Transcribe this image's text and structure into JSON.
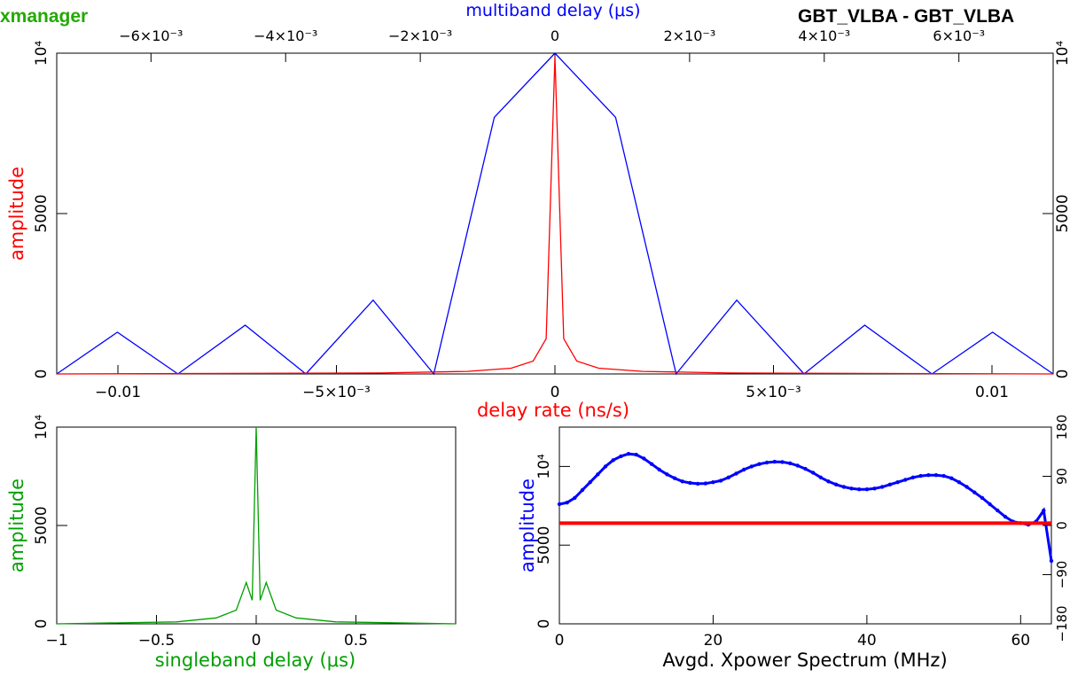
{
  "app_label": "xmanager",
  "baseline_label": "GBT_VLBA - GBT_VLBA",
  "colors": {
    "red": "#ff0000",
    "blue": "#0000ff",
    "green": "#00a000",
    "pale_green": "#20b020",
    "cyan": "#00c0c0",
    "app_green": "#22aa00"
  },
  "chart_data": [
    {
      "id": "main",
      "type": "line",
      "top_xlabel": "multiband delay (μs)",
      "xlabel": "delay rate (ns/s)",
      "ylabel": "amplitude",
      "ylim": [
        0,
        10000
      ],
      "y_ticks_left": [
        "0",
        "5000",
        "10⁴"
      ],
      "y_ticks_right": [
        "0",
        "5000",
        "10⁴"
      ],
      "top_axis": {
        "range": [
          -0.0074,
          0.0074
        ],
        "ticks": [
          {
            "v": -0.006,
            "label": "−6×10⁻³"
          },
          {
            "v": -0.004,
            "label": "−4×10⁻³"
          },
          {
            "v": -0.002,
            "label": "−2×10⁻³"
          },
          {
            "v": 0,
            "label": "0"
          },
          {
            "v": 0.002,
            "label": "2×10⁻³"
          },
          {
            "v": 0.004,
            "label": "4×10⁻³"
          },
          {
            "v": 0.006,
            "label": "6×10⁻³"
          }
        ]
      },
      "bottom_axis": {
        "range": [
          -0.0114,
          0.0114
        ],
        "ticks": [
          {
            "v": -0.01,
            "label": "−0.01"
          },
          {
            "v": -0.005,
            "label": "−5×10⁻³"
          },
          {
            "v": 0,
            "label": "0"
          },
          {
            "v": 0.005,
            "label": "5×10⁻³"
          },
          {
            "v": 0.01,
            "label": "0.01"
          }
        ]
      },
      "series": [
        {
          "color": "blue",
          "axis": "top",
          "x": [
            -0.0074,
            -0.0065,
            -0.0056,
            -0.0046,
            -0.0037,
            -0.0027,
            -0.0018,
            -0.0009,
            0,
            0.0009,
            0.0018,
            0.0027,
            0.0037,
            0.0046,
            0.0056,
            0.0065,
            0.0074
          ],
          "y": [
            0,
            1300,
            0,
            1520,
            0,
            2300,
            0,
            8000,
            10000,
            8000,
            0,
            2300,
            0,
            1520,
            0,
            1300,
            0
          ]
        },
        {
          "color": "red",
          "axis": "bottom",
          "x": [
            -0.0114,
            -0.004,
            -0.002,
            -0.001,
            -0.0005,
            -0.0002,
            0,
            0.0002,
            0.0005,
            0.001,
            0.002,
            0.004,
            0.0114
          ],
          "y": [
            0,
            30,
            80,
            180,
            400,
            1100,
            9900,
            1100,
            400,
            180,
            80,
            30,
            0
          ]
        }
      ]
    },
    {
      "id": "singleband",
      "type": "line",
      "xlabel": "singleband delay (μs)",
      "ylabel": "amplitude",
      "xlim": [
        -1,
        1
      ],
      "ylim": [
        0,
        10000
      ],
      "x_ticks": [
        {
          "v": -1,
          "label": "−1"
        },
        {
          "v": -0.5,
          "label": "−0.5"
        },
        {
          "v": 0,
          "label": "0"
        },
        {
          "v": 0.5,
          "label": "0.5"
        }
      ],
      "y_ticks": [
        "0",
        "5000",
        "10⁴"
      ],
      "series": [
        {
          "color": "green",
          "x": [
            -1,
            -0.4,
            -0.2,
            -0.1,
            -0.05,
            -0.02,
            0,
            0.02,
            0.05,
            0.1,
            0.2,
            0.4,
            1
          ],
          "y": [
            0,
            100,
            300,
            700,
            2100,
            1200,
            10000,
            1200,
            2100,
            700,
            300,
            100,
            0
          ]
        }
      ]
    },
    {
      "id": "spectrum",
      "type": "scatter",
      "xlabel": "Avgd. Xpower Spectrum (MHz)",
      "ylabel": "amplitude",
      "xlim": [
        0,
        64
      ],
      "ylim": [
        0,
        12500
      ],
      "x_ticks": [
        {
          "v": 0,
          "label": "0"
        },
        {
          "v": 20,
          "label": "20"
        },
        {
          "v": 40,
          "label": "40"
        },
        {
          "v": 60,
          "label": "60"
        }
      ],
      "y_ticks_left": [
        {
          "v": 0,
          "label": "0"
        },
        {
          "v": 5000,
          "label": "5000"
        },
        {
          "v": 10000,
          "label": "10⁴"
        }
      ],
      "y_ticks_right": [
        "−180",
        "−90",
        "0",
        "90",
        "180"
      ],
      "phase_range": [
        -180,
        180
      ],
      "series": [
        {
          "color": "blue",
          "x": [
            0,
            1,
            2,
            3,
            4,
            5,
            6,
            7,
            8,
            9,
            10,
            11,
            12,
            13,
            14,
            15,
            16,
            17,
            18,
            19,
            20,
            21,
            22,
            23,
            24,
            25,
            26,
            27,
            28,
            29,
            30,
            31,
            32,
            33,
            34,
            35,
            36,
            37,
            38,
            39,
            40,
            41,
            42,
            43,
            44,
            45,
            46,
            47,
            48,
            49,
            50,
            51,
            52,
            53,
            54,
            55,
            56,
            57,
            58,
            59,
            60,
            61,
            62,
            63,
            64
          ],
          "y": [
            7600,
            7700,
            8000,
            8500,
            9000,
            9500,
            10000,
            10400,
            10650,
            10800,
            10750,
            10500,
            10150,
            9800,
            9500,
            9250,
            9050,
            8950,
            8900,
            8920,
            9000,
            9100,
            9300,
            9550,
            9800,
            10000,
            10150,
            10250,
            10300,
            10280,
            10200,
            10050,
            9850,
            9600,
            9300,
            9050,
            8850,
            8700,
            8600,
            8550,
            8550,
            8600,
            8700,
            8850,
            9000,
            9150,
            9300,
            9400,
            9450,
            9450,
            9400,
            9250,
            9000,
            8700,
            8350,
            8000,
            7600,
            7200,
            6800,
            6500,
            6400,
            6300,
            6500,
            7200,
            4000
          ]
        },
        {
          "color": "red",
          "x": [
            0,
            64
          ],
          "y": [
            6400,
            6400
          ]
        }
      ]
    }
  ]
}
